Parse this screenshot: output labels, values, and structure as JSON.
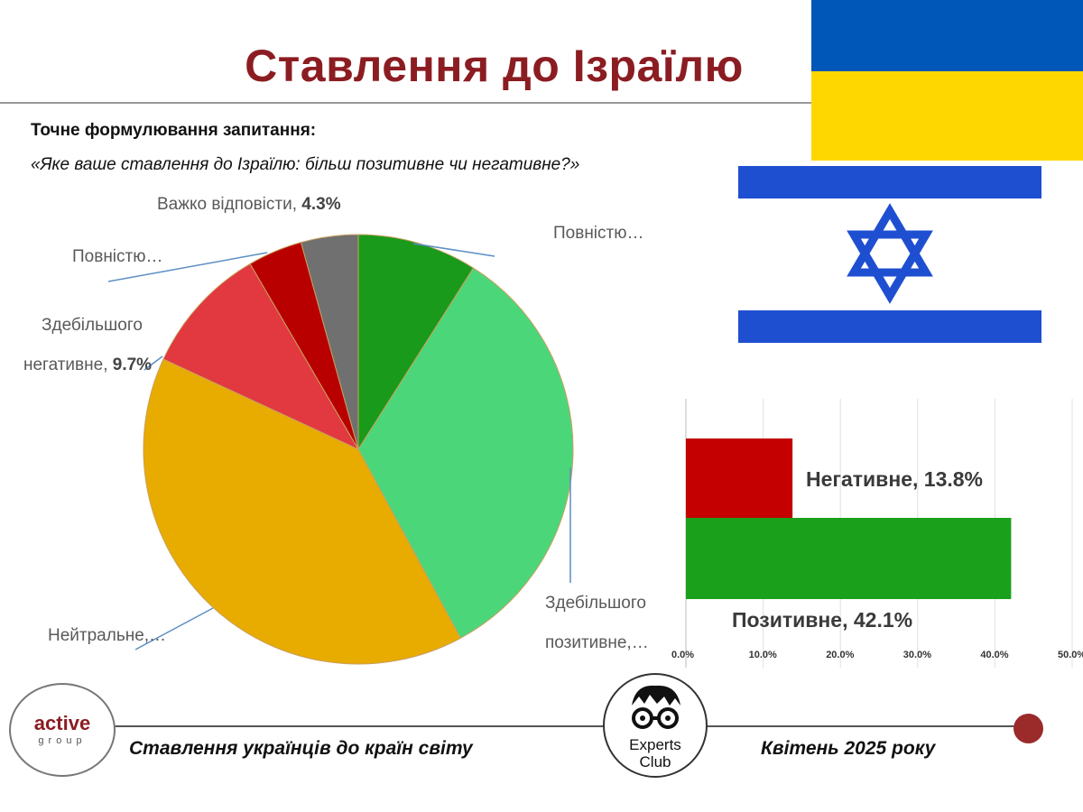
{
  "title": "Ставлення до Ізраїлю",
  "question": {
    "heading": "Точне формулювання запитання:",
    "text": "«Яке ваше ставлення до Ізраїлю: більш позитивне чи негативне?»"
  },
  "colors": {
    "title": "#8b1d22",
    "ua_blue": "#0057b7",
    "ua_yellow": "#ffd700",
    "il_blue": "#1f4fd1"
  },
  "chart_data": [
    {
      "type": "pie",
      "slices": [
        {
          "label": "Повністю…",
          "value": 9.0,
          "color": "#1a9a1a"
        },
        {
          "label": "Здебільшого позитивне,…",
          "value": 33.1,
          "color": "#4cd67a"
        },
        {
          "label": "Нейтральне,…",
          "value": 39.8,
          "color": "#e8ab00"
        },
        {
          "label": "Здебільшого негативне, 9.7%",
          "value": 9.7,
          "color": "#e2383f"
        },
        {
          "label": "Повністю…",
          "value": 4.1,
          "color": "#b80000"
        },
        {
          "label": "Важко відповісти, 4.3%",
          "value": 4.3,
          "color": "#707070"
        }
      ],
      "labels_text": {
        "hard": "Важко відповісти, ",
        "hard_value": "4.3%",
        "fully_pos": "Повністю…",
        "fully_neg": "Повністю…",
        "mostly_neg_1": "Здебільшого",
        "mostly_neg_2": "негативне, ",
        "mostly_neg_value": "9.7%",
        "mostly_pos_1": "Здебільшого",
        "mostly_pos_2": "позитивне,…",
        "neutral": "Нейтральне,…"
      }
    },
    {
      "type": "bar",
      "orientation": "horizontal",
      "categories": [
        "Негативне",
        "Позитивне"
      ],
      "values": [
        13.8,
        42.1
      ],
      "data_labels": [
        "Негативне, 13.8%",
        "Позитивне, 42.1%"
      ],
      "colors": [
        "#c40000",
        "#1aa01a"
      ],
      "xlim": [
        0,
        50
      ],
      "x_ticks": [
        "0.0%",
        "10.0%",
        "20.0%",
        "30.0%",
        "40.0%",
        "50.0%"
      ],
      "grid": true
    }
  ],
  "footer": {
    "left_text": "Ставлення українців до країн світу",
    "right_text": "Квітень 2025 року",
    "logo_active_word": "active",
    "logo_active_sub": "group",
    "logo_experts_1": "Experts",
    "logo_experts_2": "Club"
  }
}
